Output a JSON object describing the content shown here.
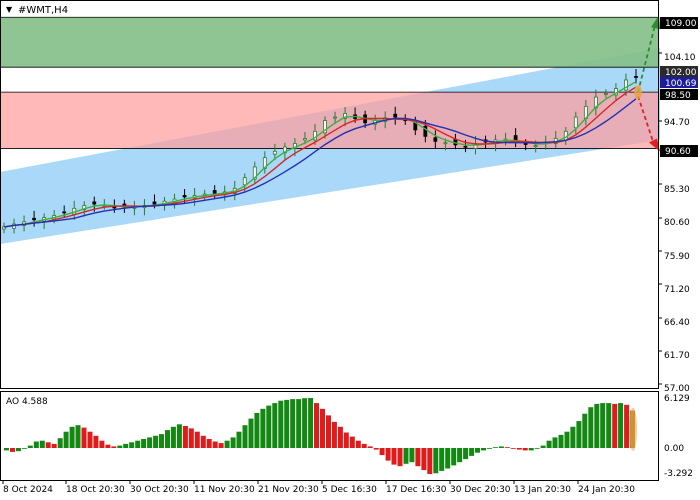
{
  "window": {
    "title": "#WMT,H4",
    "menu_icon": "dropdown-triangle-icon"
  },
  "colors": {
    "buy_zone": "#85c08a",
    "sell_zone": "#ff9e9e",
    "channel": "#8ecbf5",
    "bull_candle": "#2b7a2b",
    "bear_candle": "#000000",
    "ma_fast": "#3cb043",
    "ma_mid": "#d62728",
    "ma_slow": "#2431b5",
    "ao_up": "#138813",
    "ao_down": "#e01b1b",
    "ao_last": "#a0861a",
    "arrow_up": "#2e8b2e",
    "arrow_down": "#e02020"
  },
  "price_panel": {
    "y_axis_labels": [
      "104.10",
      "94.70",
      "85.30",
      "80.60",
      "75.90",
      "71.20",
      "66.40",
      "61.70",
      "57.00"
    ],
    "highlighted_labels": [
      {
        "text": "109.00",
        "price": 109.0
      },
      {
        "text": "102.00",
        "price": 102.0
      },
      {
        "text": "100.69",
        "price": 100.69
      },
      {
        "text": "98.50",
        "price": 98.5
      },
      {
        "text": "90.60",
        "price": 90.6
      }
    ]
  },
  "ao_panel": {
    "label": "AO 4.588",
    "y_axis_labels": [
      "6.129",
      "0.00",
      "-3.292"
    ]
  },
  "x_axis_labels": [
    "8 Oct 2024",
    "18 Oct 20:30",
    "30 Oct 20:30",
    "11 Nov 20:30",
    "21 Nov 20:30",
    "5 Dec 16:30",
    "17 Dec 16:30",
    "30 Dec 20:30",
    "13 Jan 20:30",
    "24 Jan 20:30"
  ],
  "chart_data": [
    {
      "type": "line",
      "symbol": "#WMT",
      "timeframe": "H4",
      "ylim": [
        57.0,
        111.0
      ],
      "levels": {
        "buy_target": 109.0,
        "buy_entry": 102.0,
        "last_price": 100.69,
        "sell_entry": 98.5,
        "sell_target": 90.6
      },
      "zones": [
        {
          "kind": "buy",
          "from": 102.0,
          "to": 109.0
        },
        {
          "kind": "sell",
          "from": 90.6,
          "to": 98.5
        }
      ],
      "close_approx": [
        79.6,
        80.0,
        80.3,
        80.6,
        80.9,
        81.2,
        81.6,
        82.2,
        82.6,
        82.8,
        82.6,
        82.3,
        82.4,
        82.5,
        82.6,
        82.8,
        83.2,
        83.5,
        83.8,
        84.0,
        84.2,
        84.3,
        84.5,
        85.0,
        86.5,
        88.0,
        89.3,
        90.2,
        90.8,
        91.3,
        92.0,
        93.0,
        94.5,
        95.0,
        95.5,
        94.8,
        94.2,
        94.6,
        94.9,
        95.0,
        94.5,
        93.2,
        92.3,
        91.6,
        91.4,
        91.1,
        90.8,
        91.3,
        91.5,
        91.8,
        91.9,
        91.5,
        91.2,
        91.0,
        91.5,
        92.0,
        93.0,
        95.0,
        96.5,
        97.8,
        98.3,
        99.0,
        100.2,
        100.69
      ]
    },
    {
      "type": "bar",
      "name": "AO",
      "current": 4.588,
      "ylim": [
        -3.292,
        6.129
      ],
      "values": [
        -0.3,
        -0.5,
        -0.4,
        -0.1,
        0.3,
        0.8,
        0.9,
        0.7,
        0.5,
        1.2,
        2.0,
        2.6,
        2.8,
        2.5,
        2.0,
        1.5,
        0.9,
        0.4,
        0.2,
        0.3,
        0.5,
        0.7,
        0.9,
        1.1,
        1.3,
        1.5,
        1.7,
        2.2,
        2.6,
        2.9,
        2.7,
        2.4,
        2.0,
        1.5,
        1.1,
        0.8,
        0.6,
        0.9,
        1.3,
        2.0,
        2.8,
        3.6,
        4.3,
        4.8,
        5.2,
        5.5,
        5.8,
        5.9,
        6.0,
        6.0,
        6.1,
        6.129,
        5.5,
        4.8,
        4.0,
        3.2,
        2.6,
        1.9,
        1.4,
        0.9,
        0.5,
        0.2,
        -0.2,
        -0.9,
        -1.6,
        -2.1,
        -2.3,
        -2.0,
        -1.8,
        -2.3,
        -2.8,
        -3.292,
        -3.2,
        -2.9,
        -2.6,
        -2.2,
        -1.8,
        -1.4,
        -1.0,
        -0.6,
        -0.3,
        -0.1,
        0.1,
        0.2,
        0.1,
        -0.1,
        -0.2,
        -0.3,
        -0.3,
        -0.1,
        0.3,
        0.9,
        1.3,
        1.6,
        2.0,
        2.6,
        3.3,
        4.2,
        5.0,
        5.4,
        5.5,
        5.5,
        5.4,
        5.5,
        5.3,
        4.588
      ]
    }
  ]
}
